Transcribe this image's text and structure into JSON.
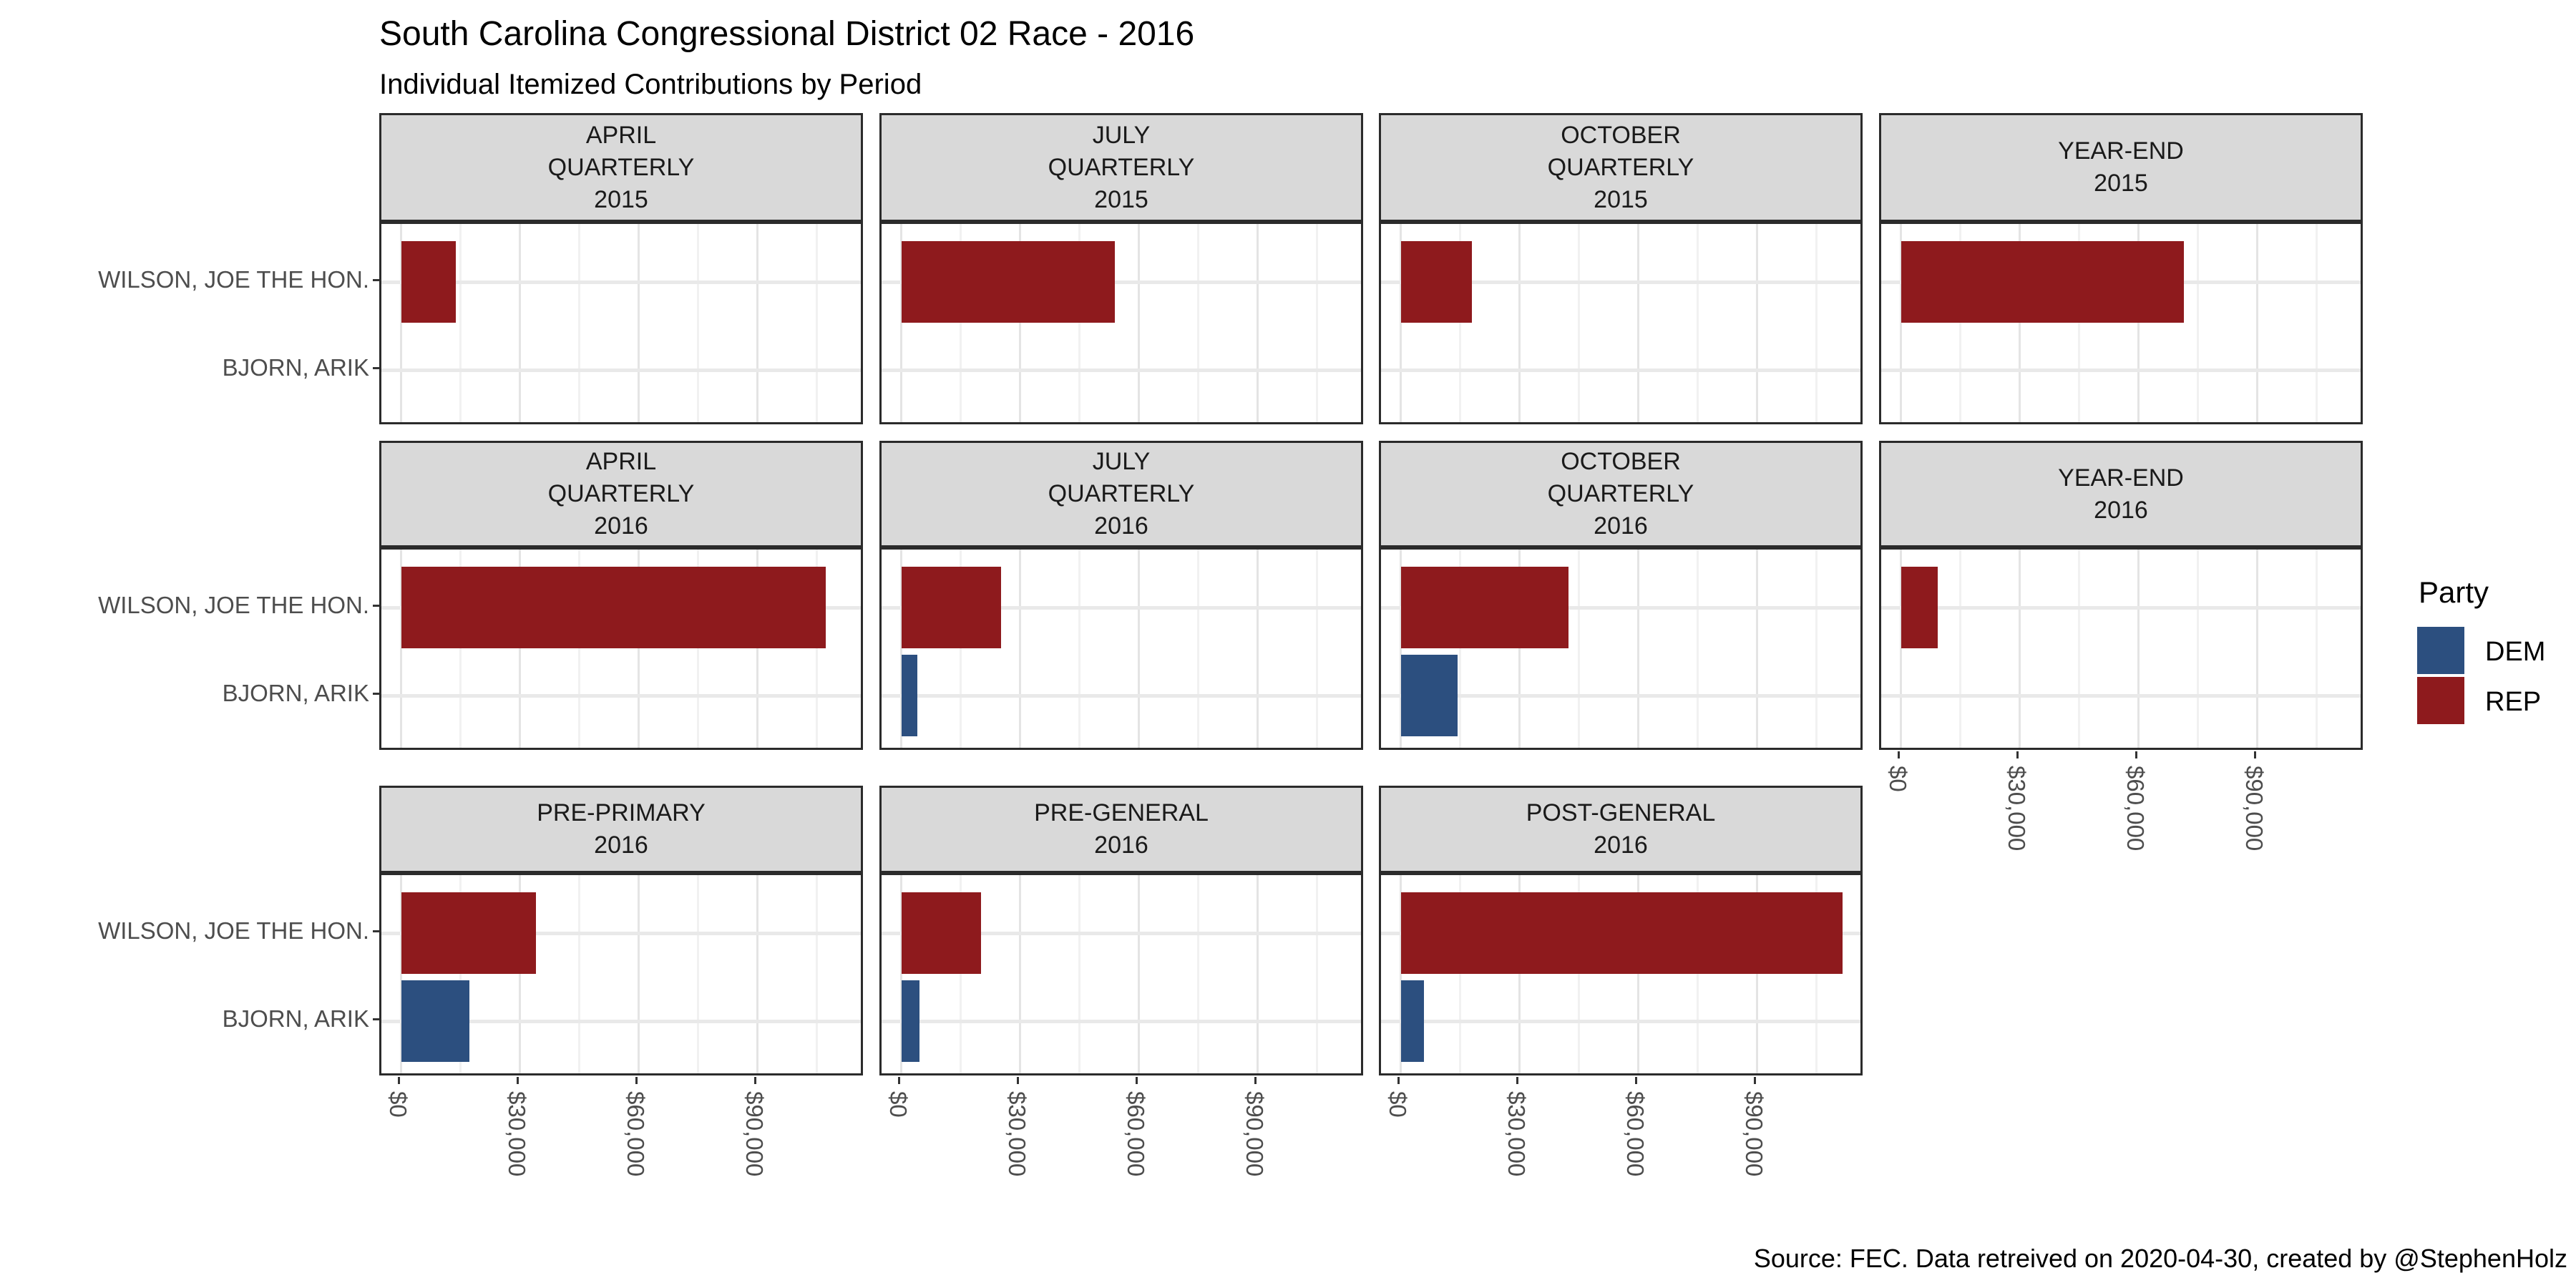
{
  "header": {
    "title": "South Carolina Congressional District 02 Race - 2016",
    "subtitle": "Individual Itemized Contributions by Period"
  },
  "caption": "Source: FEC. Data retreived on 2020-04-30, created by @StephenHolz",
  "legend": {
    "title": "Party",
    "items": [
      {
        "label": "DEM",
        "color": "#2C4F7F"
      },
      {
        "label": "REP",
        "color": "#8E1A1D"
      }
    ]
  },
  "colors": {
    "rep": "#8E1A1D",
    "dem": "#2C4F7F",
    "strip_background": "#D9D9D9",
    "panel_border": "#2B2B2B",
    "grid_major": "#E4E4E4",
    "grid_minor": "#F1F1F1",
    "axis_text": "#4D4D4D"
  },
  "chart_data": {
    "type": "bar",
    "orientation": "horizontal",
    "title": "South Carolina Congressional District 02 Race - 2016",
    "subtitle": "Individual Itemized Contributions by Period",
    "categories": [
      "WILSON, JOE THE HON.",
      "BJORN, ARIK"
    ],
    "facets": [
      {
        "row": 1,
        "col": 1,
        "header_lines": [
          "APRIL",
          "QUARTERLY",
          "2015"
        ]
      },
      {
        "row": 1,
        "col": 2,
        "header_lines": [
          "JULY",
          "QUARTERLY",
          "2015"
        ]
      },
      {
        "row": 1,
        "col": 3,
        "header_lines": [
          "OCTOBER",
          "QUARTERLY",
          "2015"
        ]
      },
      {
        "row": 1,
        "col": 4,
        "header_lines": [
          "YEAR-END",
          "2015"
        ]
      },
      {
        "row": 2,
        "col": 1,
        "header_lines": [
          "APRIL",
          "QUARTERLY",
          "2016"
        ]
      },
      {
        "row": 2,
        "col": 2,
        "header_lines": [
          "JULY",
          "QUARTERLY",
          "2016"
        ]
      },
      {
        "row": 2,
        "col": 3,
        "header_lines": [
          "OCTOBER",
          "QUARTERLY",
          "2016"
        ]
      },
      {
        "row": 2,
        "col": 4,
        "header_lines": [
          "YEAR-END",
          "2016"
        ]
      },
      {
        "row": 3,
        "col": 1,
        "header_lines": [
          "PRE-PRIMARY",
          "2016"
        ]
      },
      {
        "row": 3,
        "col": 2,
        "header_lines": [
          "PRE-GENERAL",
          "2016"
        ]
      },
      {
        "row": 3,
        "col": 3,
        "header_lines": [
          "POST-GENERAL",
          "2016"
        ]
      }
    ],
    "series": [
      {
        "name": "WILSON, JOE THE HON.",
        "party": "REP",
        "values": [
          13900,
          53900,
          18000,
          71400,
          107200,
          25300,
          42300,
          9300,
          34000,
          20100,
          111600
        ]
      },
      {
        "name": "BJORN, ARIK",
        "party": "DEM",
        "values": [
          0,
          0,
          0,
          0,
          0,
          4000,
          14400,
          0,
          17200,
          4600,
          5800
        ]
      }
    ],
    "x_ticks": [
      "$0",
      "$30,000",
      "$60,000",
      "$90,000"
    ],
    "x_tick_values": [
      0,
      30000,
      60000,
      90000
    ],
    "x_minor_values": [
      15000,
      45000,
      75000,
      105000
    ],
    "xlim": [
      -5000,
      117000
    ],
    "grid": true,
    "legend_position": "right"
  }
}
